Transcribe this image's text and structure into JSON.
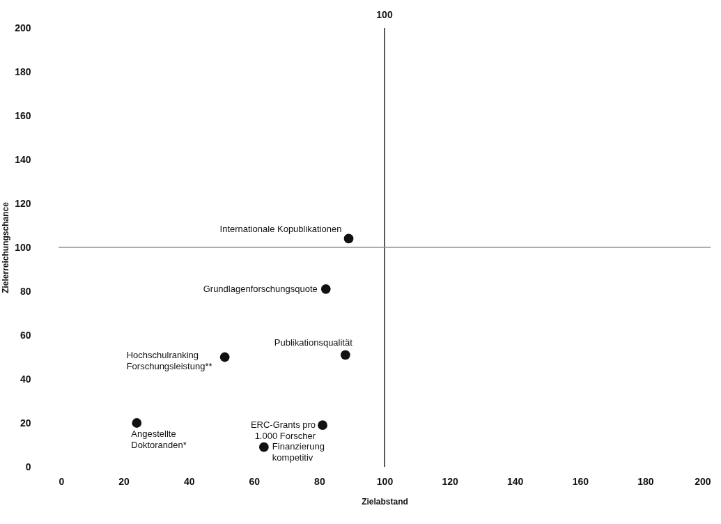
{
  "chart_data": {
    "type": "scatter",
    "xlabel": "Zielabstand",
    "ylabel": "Zielerreichungschance",
    "x": [
      89,
      82,
      88,
      51,
      24,
      81,
      63
    ],
    "series": [
      {
        "color": "#111111",
        "values": [
          104,
          81,
          51,
          50,
          20,
          19,
          9
        ]
      }
    ],
    "marker": "circle",
    "xlim": [
      0,
      200
    ],
    "xticks": [
      0,
      20,
      40,
      60,
      80,
      100,
      120,
      140,
      160,
      180,
      200
    ],
    "ylim": [
      0,
      200
    ],
    "yticks": [
      0,
      20,
      40,
      60,
      80,
      100,
      120,
      140,
      160,
      180,
      200
    ],
    "ref_lines": [
      {
        "axis": "x",
        "value": 100,
        "label": "100"
      },
      {
        "axis": "y",
        "value": 100,
        "label": null
      }
    ],
    "annotations": [
      {
        "text": "Internationale Kopublikationen",
        "x": 89,
        "y": 104
      },
      {
        "text": "Grundlagenforschungsquote",
        "x": 82,
        "y": 81
      },
      {
        "text": "Publikationsqualität",
        "x": 88,
        "y": 51
      },
      {
        "text": "Hochschulranking\nForschungsleistung**",
        "x": 51,
        "y": 50
      },
      {
        "text": "Angestellte\nDoktoranden*",
        "x": 24,
        "y": 20
      },
      {
        "text": "ERC-Grants pro\n1.000 Forscher",
        "x": 81,
        "y": 19
      },
      {
        "text": "Finanzierung\nkompetitiv",
        "x": 63,
        "y": 9
      }
    ]
  }
}
